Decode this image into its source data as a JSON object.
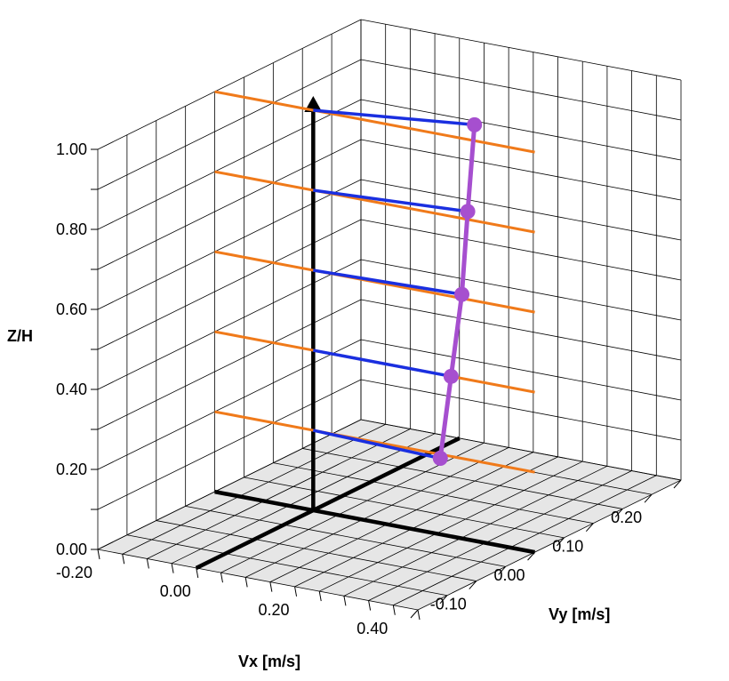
{
  "chart_data": {
    "type": "line",
    "projection": "3d",
    "axes": {
      "x": {
        "label": "Vx [m/s]",
        "range": [
          -0.2,
          0.45
        ],
        "ticks": [
          "-0.20",
          "0.00",
          "0.20",
          "0.40"
        ]
      },
      "y": {
        "label": "Vy [m/s]",
        "range": [
          -0.2,
          0.25
        ],
        "ticks": [
          "-0.10",
          "0.00",
          "0.10",
          "0.20"
        ]
      },
      "z": {
        "label": "Z/H",
        "range": [
          0.0,
          1.0
        ],
        "ticks": [
          "0.00",
          "0.20",
          "0.40",
          "0.60",
          "0.80",
          "1.00"
        ]
      }
    },
    "grid": true,
    "floor_color": "#e6e6e6",
    "levels": [
      0.2,
      0.4,
      0.6,
      0.8,
      1.0
    ],
    "series": [
      {
        "role": "profile",
        "color": "#a64fcf",
        "points": [
          {
            "vx": 0.27,
            "vy": -0.01,
            "z": 0.2
          },
          {
            "vx": 0.28,
            "vy": 0.0,
            "z": 0.4
          },
          {
            "vx": 0.29,
            "vy": 0.01,
            "z": 0.6
          },
          {
            "vx": 0.29,
            "vy": 0.02,
            "z": 0.8
          },
          {
            "vx": 0.28,
            "vy": 0.04,
            "z": 1.0
          }
        ]
      },
      {
        "role": "vx-component",
        "color": "#1a2fe0"
      },
      {
        "role": "reference-line",
        "color": "#f07a1a"
      }
    ],
    "reference_axis_color": "#000000"
  }
}
